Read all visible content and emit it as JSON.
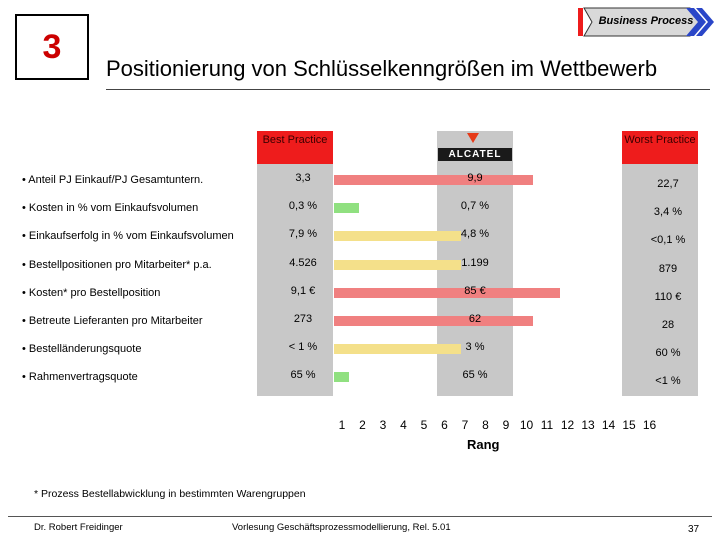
{
  "chapter_number": "3",
  "process_label": "Business Process",
  "title": "Positionierung von Schlüsselkenngrößen im Wettbewerb",
  "best_practice_label": "Best Practice",
  "worst_practice_label": "Worst Practice",
  "company_logo_text": "ALCATEL",
  "axis": {
    "ticks": [
      "1",
      "2",
      "3",
      "4",
      "5",
      "6",
      "7",
      "8",
      "9",
      "10",
      "11",
      "12",
      "13",
      "14",
      "15",
      "16"
    ],
    "label": "Rang"
  },
  "rows": [
    {
      "criterion": "• Anteil PJ Einkauf/PJ Gesamtuntern.",
      "best": "3,3",
      "alcatel": "9,9",
      "worst": "22,7",
      "rank": 10,
      "color": "#f08080"
    },
    {
      "criterion": "• Kosten in % vom Einkaufsvolumen",
      "best": "0,3 %",
      "alcatel": "0,7 %",
      "worst": "3,4 %",
      "rank": 1.5,
      "color": "#90e080"
    },
    {
      "criterion": "• Einkaufserfolg in % vom Einkaufsvolumen",
      "best": "7,9 %",
      "alcatel": "4,8 %",
      "worst": "<0,1 %",
      "rank": 6.5,
      "color": "#f4e08a"
    },
    {
      "criterion": "• Bestellpositionen pro Mitarbeiter* p.a.",
      "best": "4.526",
      "alcatel": "1.199",
      "worst": "879",
      "rank": 6.5,
      "color": "#f4e08a"
    },
    {
      "criterion": "• Kosten* pro Bestellposition",
      "best": "9,1 €",
      "alcatel": "85 €",
      "worst": "110 €",
      "rank": 11.3,
      "color": "#f08080"
    },
    {
      "criterion": "• Betreute Lieferanten pro Mitarbeiter",
      "best": "273",
      "alcatel": "62",
      "worst": "28",
      "rank": 10,
      "color": "#f08080"
    },
    {
      "criterion": "• Bestelländerungsquote",
      "best": "< 1 %",
      "alcatel": "3 %",
      "worst": "60 %",
      "rank": 6.5,
      "color": "#f4e08a"
    },
    {
      "criterion": "• Rahmenvertragsquote",
      "best": "65 %",
      "alcatel": "65 %",
      "worst": "<1 %",
      "rank": 1,
      "color": "#90e080"
    }
  ],
  "footnote": "* Prozess Bestellabwicklung in bestimmten Warengruppen",
  "footer": {
    "author": "Dr. Robert Freidinger",
    "course": "Vorlesung Geschäftsprozessmodellierung, Rel. 5.01",
    "page": "37"
  }
}
